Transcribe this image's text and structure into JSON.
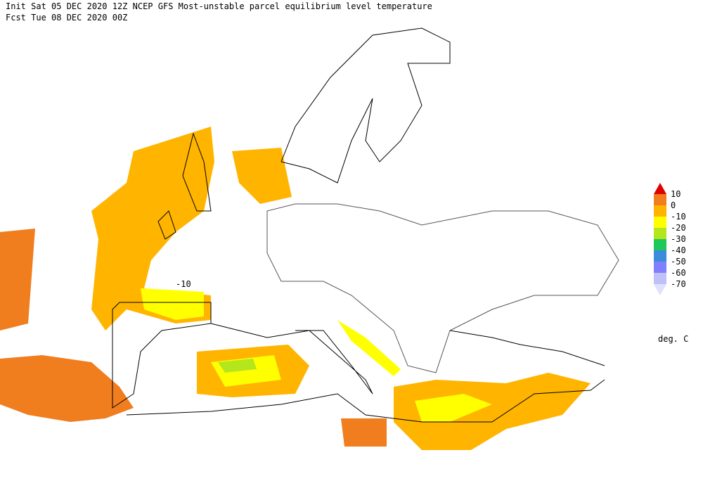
{
  "header": {
    "line1": "Init  Sat 05 DEC 2020 12Z  NCEP GFS Most-unstable parcel equilibrium level temperature",
    "line2": "Fcst Tue 08 DEC 2020 00Z"
  },
  "map": {
    "contour_label": "-10"
  },
  "colorbar": {
    "labels": [
      "10",
      "0",
      "-10",
      "-20",
      "-30",
      "-40",
      "-50",
      "-60",
      "-70"
    ],
    "colors": [
      "#e00000",
      "#f07d1e",
      "#ffb400",
      "#ffff00",
      "#b4e61e",
      "#1ec85a",
      "#3c8cdc",
      "#8080ff",
      "#c0c0f8",
      "#e0e0ff"
    ],
    "unit": "deg. C"
  }
}
